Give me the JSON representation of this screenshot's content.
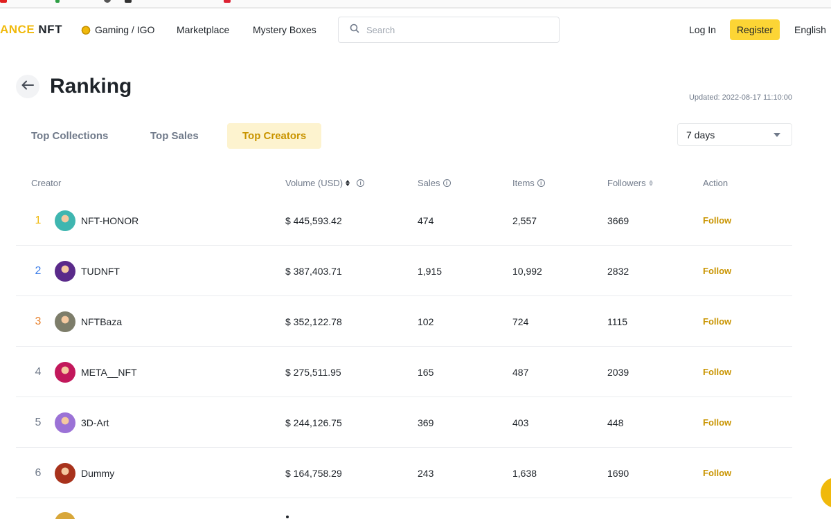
{
  "header": {
    "logo_part1": "ANCE",
    "logo_part2": "NFT",
    "nav": [
      "Gaming / IGO",
      "Marketplace",
      "Mystery Boxes"
    ],
    "search_placeholder": "Search",
    "login": "Log In",
    "register": "Register",
    "language": "English"
  },
  "page": {
    "title": "Ranking",
    "updated": "Updated: 2022-08-17 11:10:00"
  },
  "tabs": [
    {
      "label": "Top Collections",
      "active": false
    },
    {
      "label": "Top Sales",
      "active": false
    },
    {
      "label": "Top Creators",
      "active": true
    }
  ],
  "period": "7 days",
  "table": {
    "headers": {
      "creator": "Creator",
      "volume": "Volume (USD)",
      "sales": "Sales",
      "items": "Items",
      "followers": "Followers",
      "action": "Action"
    },
    "rows": [
      {
        "rank": "1",
        "name": "NFT-HONOR",
        "volume": "$ 445,593.42",
        "sales": "474",
        "items": "2,557",
        "followers": "3669",
        "action": "Follow",
        "rank_color": "#f0b90b",
        "avatar_color": "#3fb6b0"
      },
      {
        "rank": "2",
        "name": "TUDNFT",
        "volume": "$ 387,403.71",
        "sales": "1,915",
        "items": "10,992",
        "followers": "2832",
        "action": "Follow",
        "rank_color": "#3d7ee8",
        "avatar_color": "#5a2a8a"
      },
      {
        "rank": "3",
        "name": "NFTBaza",
        "volume": "$ 352,122.78",
        "sales": "102",
        "items": "724",
        "followers": "1115",
        "action": "Follow",
        "rank_color": "#e8822e",
        "avatar_color": "#7d7d6a"
      },
      {
        "rank": "4",
        "name": "META__NFT",
        "volume": "$ 275,511.95",
        "sales": "165",
        "items": "487",
        "followers": "2039",
        "action": "Follow",
        "rank_color": "#707a8a",
        "avatar_color": "#c2185b"
      },
      {
        "rank": "5",
        "name": "3D-Art",
        "volume": "$ 244,126.75",
        "sales": "369",
        "items": "403",
        "followers": "448",
        "action": "Follow",
        "rank_color": "#707a8a",
        "avatar_color": "#9b72d6"
      },
      {
        "rank": "6",
        "name": "Dummy",
        "volume": "$ 164,758.29",
        "sales": "243",
        "items": "1,638",
        "followers": "1690",
        "action": "Follow",
        "rank_color": "#707a8a",
        "avatar_color": "#a8321c"
      }
    ]
  },
  "colors": {
    "accent": "#f0b90b",
    "register_bg": "#fcd535",
    "follow_text": "#c99400",
    "active_tab_bg": "#fdf3cf"
  }
}
